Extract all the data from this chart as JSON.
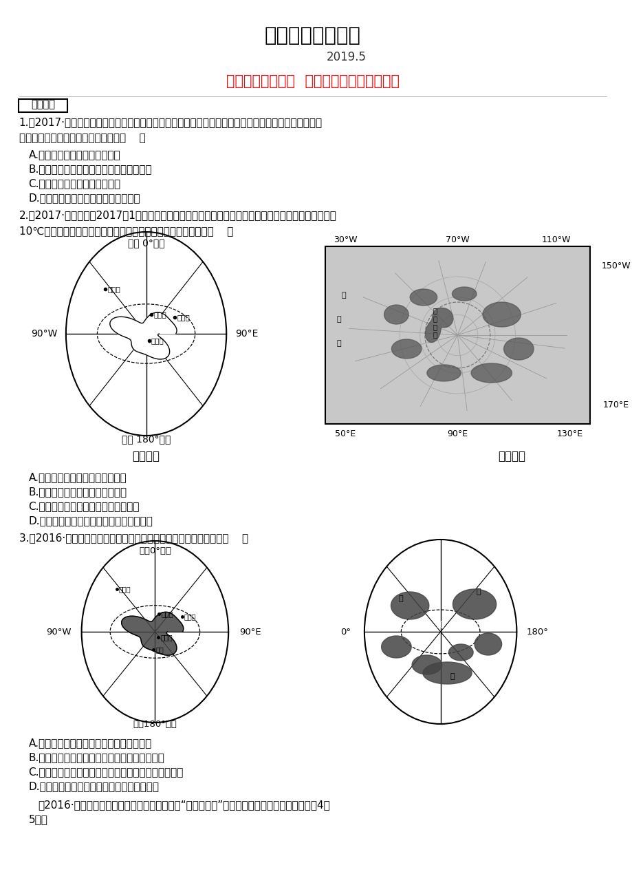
{
  "title1": "地理精品教学资料",
  "title2": "2019.5",
  "title3": "第九课时欧洲西部  北极地区和南极地区测试",
  "section_label": "真题精选",
  "q1_line1": "1.（2017·郴州中考）极地地区的环境保护越来越受到全世界的重视，南极地区的和平开发备受关注。下",
  "q1_line2": "列做法中有利于南极可持续发展的是（    ）",
  "q1a": "A.加强国际合作，保护南极环境",
  "q1b": "B.为了经济发展，大力开采南极的矿产资源",
  "q1c": "C.大量捕杀企鹅，享用企鹅美食",
  "q1d": "D.科考队将垃圾埋在雪地里或丢弃海中",
  "q2_line1": "2.（2017·秦安中考）2017年1月，美国国家环境预报中心监测显示，北极中心区域气温较常年同期偏高",
  "q2_line2": "10℃左右，北极加速升温。请根据地图，判断下列描述正确的是（    ）",
  "map1_title_top": "西经 0°东经",
  "map1_label_left": "90°W",
  "map1_label_right": "90°E",
  "map1_label_bottom": "西经 180°东经",
  "map1_caption": "南极地区",
  "map2_top_labels": [
    "30°W",
    "70°W",
    "110°W"
  ],
  "map2_right_labels": [
    "150°W",
    "170°E"
  ],
  "map2_bottom_labels": [
    "50°E",
    "90°E",
    "130°E"
  ],
  "map2_caption": "北极地区",
  "q2a": "A.南极地区是指南极圈以南的地区",
  "q2b": "B.北极地区陆地面积大于海洋面积",
  "q2c": "C.南极地区的长城站比昆仑站更加寒冷",
  "q2d": "D.北极加速升温的主要原因是全球气候变暖",
  "q3": "3.（2016·德州中考）读两极地区示意图，判断下列说法不正确的是（    ）",
  "map3_title_top": "西经0°东经",
  "map3_label_left": "90°W",
  "map3_label_right": "90°E",
  "map3_label_bottom": "西经180°东经",
  "map4_label_left": "0°",
  "map4_label_right": "180°",
  "q3a": "A.长城站位于西半球，在泰山站的西北方向",
  "q3b": "B.甲乙丙代表的大洲分别是北美洲、亚洲、欧洲",
  "q3c": "C.南极地区无人定居，北极地区的土著居民是因纽特人",
  "q3d": "D.北极地区降水多，是世界最大的淡水资源库",
  "q4_line1": "（2016·聊城中考）极地地区是研究地球环境的“天然实验室”。读我国南极科考站分布图，完成4～",
  "q4_line2": "5题。",
  "bg_color": "#ffffff",
  "text_color": "#000000",
  "title3_color": "#ff0000",
  "section_box_color": "#000000"
}
